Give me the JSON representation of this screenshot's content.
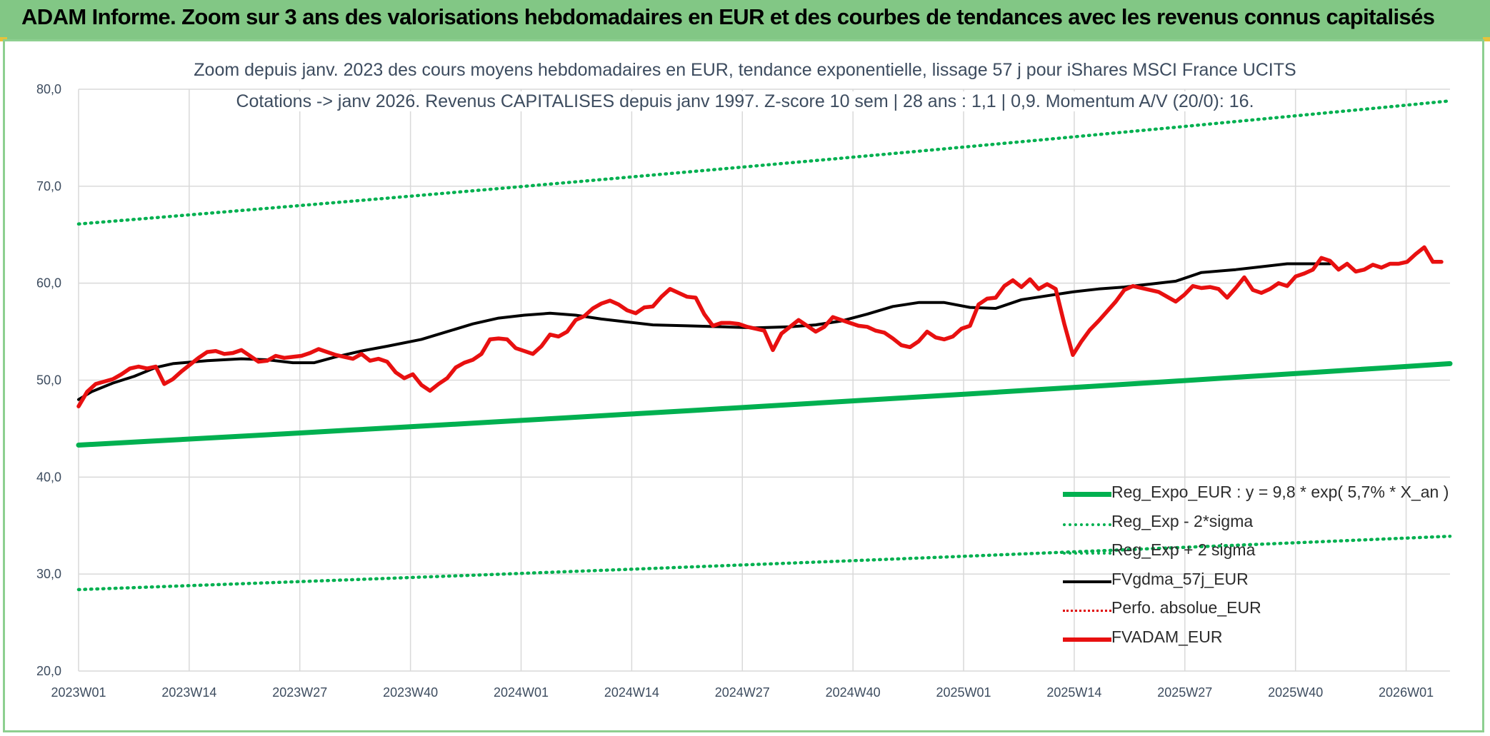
{
  "header": {
    "title": "ADAM Informe. Zoom sur 3 ans des valorisations hebdomadaires en EUR et des courbes de tendances avec les revenus connus capitalisés"
  },
  "chart_data": {
    "type": "line",
    "title": "Zoom depuis janv. 2023 des cours moyens hebdomadaires en EUR, tendance exponentielle, lissage 57 j pour iShares MSCI France UCITS",
    "subtitle": "Cotations -> janv 2026. Revenus CAPITALISES depuis janv 1997. Z-score 10 sem | 28 ans : 1,1 | 0,9. Momentum A/V (20/0): 16.",
    "xlabel": "",
    "ylabel": "",
    "ylim": [
      20,
      80
    ],
    "yticks": [
      "20,0",
      "30,0",
      "40,0",
      "50,0",
      "60,0",
      "70,0",
      "80,0"
    ],
    "yticks_values": [
      20,
      30,
      40,
      50,
      60,
      70,
      80
    ],
    "x_ticks": [
      "2023W01",
      "2023W14",
      "2023W27",
      "2023W40",
      "2024W01",
      "2024W14",
      "2024W27",
      "2024W40",
      "2025W01",
      "2025W14",
      "2025W27",
      "2025W40",
      "2026W01"
    ],
    "x_tick_index": [
      0,
      13,
      26,
      39,
      52,
      65,
      78,
      91,
      104,
      117,
      130,
      143,
      156
    ],
    "x_count": 161,
    "grid": true,
    "legend_position": "bottom-right",
    "series": [
      {
        "name": "Reg_Expo_EUR : y = 9,8 * exp( 5,7% *  X_an )",
        "style": "solid-thick",
        "color": "#00b050",
        "start": 43.3,
        "end": 51.7
      },
      {
        "name": "Reg_Exp - 2*sigma",
        "style": "dotted",
        "color": "#00b050",
        "start": 28.4,
        "end": 33.9
      },
      {
        "name": "Reg_Exp + 2 sigma",
        "style": "dotted",
        "color": "#00b050",
        "start": 66.1,
        "end": 78.8
      },
      {
        "name": "FVgdma_57j_EUR",
        "style": "solid",
        "color": "#000000",
        "points": [
          [
            0,
            48.0
          ],
          [
            3,
            48.8
          ],
          [
            8,
            49.7
          ],
          [
            13,
            50.4
          ],
          [
            18,
            51.3
          ],
          [
            22,
            51.7
          ],
          [
            30,
            52.0
          ],
          [
            38,
            52.2
          ],
          [
            44,
            52.1
          ],
          [
            50,
            51.8
          ],
          [
            55,
            51.8
          ],
          [
            60,
            52.4
          ],
          [
            66,
            53.0
          ],
          [
            72,
            53.5
          ],
          [
            80,
            54.2
          ],
          [
            86,
            55.0
          ],
          [
            92,
            55.8
          ],
          [
            98,
            56.4
          ],
          [
            104,
            56.7
          ],
          [
            110,
            56.9
          ],
          [
            116,
            56.7
          ],
          [
            122,
            56.3
          ],
          [
            128,
            56.0
          ],
          [
            134,
            55.7
          ],
          [
            142,
            55.6
          ],
          [
            150,
            55.5
          ],
          [
            158,
            55.4
          ],
          [
            166,
            55.5
          ],
          [
            172,
            55.7
          ],
          [
            178,
            56.1
          ],
          [
            184,
            56.8
          ],
          [
            190,
            57.6
          ],
          [
            196,
            58.0
          ],
          [
            202,
            58.0
          ],
          [
            208,
            57.5
          ],
          [
            214,
            57.4
          ],
          [
            220,
            58.3
          ],
          [
            226,
            58.7
          ],
          [
            232,
            59.1
          ],
          [
            238,
            59.4
          ],
          [
            244,
            59.6
          ],
          [
            250,
            59.9
          ],
          [
            256,
            60.2
          ],
          [
            262,
            61.1
          ],
          [
            270,
            61.4
          ],
          [
            276,
            61.7
          ],
          [
            282,
            62.0
          ],
          [
            288,
            62.0
          ],
          [
            292,
            62.0
          ]
        ]
      },
      {
        "name": "Perfo. absolue_EUR",
        "style": "dotted",
        "color": "#e00000",
        "points": []
      },
      {
        "name": "FVADAM_EUR",
        "style": "solid-thick",
        "color": "#e81010",
        "points": [
          [
            0,
            47.3
          ],
          [
            2,
            48.8
          ],
          [
            4,
            49.6
          ],
          [
            8,
            50.1
          ],
          [
            10,
            50.6
          ],
          [
            12,
            51.2
          ],
          [
            14,
            51.4
          ],
          [
            16,
            51.2
          ],
          [
            18,
            51.4
          ],
          [
            20,
            49.6
          ],
          [
            22,
            50.1
          ],
          [
            24,
            50.9
          ],
          [
            26,
            51.6
          ],
          [
            28,
            52.3
          ],
          [
            30,
            52.9
          ],
          [
            32,
            53.0
          ],
          [
            34,
            52.7
          ],
          [
            36,
            52.8
          ],
          [
            38,
            53.1
          ],
          [
            40,
            52.5
          ],
          [
            42,
            51.9
          ],
          [
            44,
            52.0
          ],
          [
            46,
            52.5
          ],
          [
            48,
            52.3
          ],
          [
            50,
            52.4
          ],
          [
            52,
            52.5
          ],
          [
            54,
            52.8
          ],
          [
            56,
            53.2
          ],
          [
            58,
            52.9
          ],
          [
            60,
            52.6
          ],
          [
            62,
            52.4
          ],
          [
            64,
            52.2
          ],
          [
            66,
            52.7
          ],
          [
            68,
            52.0
          ],
          [
            70,
            52.2
          ],
          [
            72,
            51.9
          ],
          [
            74,
            50.8
          ],
          [
            76,
            50.2
          ],
          [
            78,
            50.6
          ],
          [
            80,
            49.5
          ],
          [
            82,
            48.9
          ],
          [
            84,
            49.6
          ],
          [
            86,
            50.2
          ],
          [
            88,
            51.3
          ],
          [
            90,
            51.8
          ],
          [
            92,
            52.1
          ],
          [
            94,
            52.7
          ],
          [
            96,
            54.2
          ],
          [
            98,
            54.3
          ],
          [
            100,
            54.2
          ],
          [
            102,
            53.3
          ],
          [
            104,
            53.0
          ],
          [
            106,
            52.7
          ],
          [
            108,
            53.5
          ],
          [
            110,
            54.7
          ],
          [
            112,
            54.5
          ],
          [
            114,
            55.0
          ],
          [
            116,
            56.2
          ],
          [
            118,
            56.6
          ],
          [
            120,
            57.4
          ],
          [
            122,
            57.9
          ],
          [
            124,
            58.2
          ],
          [
            126,
            57.8
          ],
          [
            128,
            57.2
          ],
          [
            130,
            56.9
          ],
          [
            132,
            57.5
          ],
          [
            134,
            57.6
          ],
          [
            136,
            58.6
          ],
          [
            138,
            59.4
          ],
          [
            140,
            59.0
          ],
          [
            142,
            58.6
          ],
          [
            144,
            58.5
          ],
          [
            146,
            56.8
          ],
          [
            148,
            55.6
          ],
          [
            150,
            55.9
          ],
          [
            152,
            55.9
          ],
          [
            154,
            55.8
          ],
          [
            156,
            55.5
          ],
          [
            158,
            55.3
          ],
          [
            160,
            55.1
          ],
          [
            162,
            53.1
          ],
          [
            164,
            54.8
          ],
          [
            166,
            55.5
          ],
          [
            168,
            56.2
          ],
          [
            170,
            55.6
          ],
          [
            172,
            55.0
          ],
          [
            174,
            55.5
          ],
          [
            176,
            56.5
          ],
          [
            178,
            56.2
          ],
          [
            180,
            55.9
          ],
          [
            182,
            55.6
          ],
          [
            184,
            55.5
          ],
          [
            186,
            55.1
          ],
          [
            188,
            54.9
          ],
          [
            190,
            54.3
          ],
          [
            192,
            53.6
          ],
          [
            194,
            53.4
          ],
          [
            196,
            54.0
          ],
          [
            198,
            55.0
          ],
          [
            200,
            54.4
          ],
          [
            202,
            54.2
          ],
          [
            204,
            54.5
          ],
          [
            206,
            55.3
          ],
          [
            208,
            55.6
          ],
          [
            210,
            57.8
          ],
          [
            212,
            58.4
          ],
          [
            214,
            58.5
          ],
          [
            216,
            59.7
          ],
          [
            218,
            60.3
          ],
          [
            220,
            59.6
          ],
          [
            222,
            60.4
          ],
          [
            224,
            59.4
          ],
          [
            226,
            59.9
          ],
          [
            228,
            59.4
          ],
          [
            230,
            55.8
          ],
          [
            232,
            52.6
          ],
          [
            234,
            54.0
          ],
          [
            236,
            55.2
          ],
          [
            238,
            56.1
          ],
          [
            240,
            57.1
          ],
          [
            242,
            58.1
          ],
          [
            244,
            59.3
          ],
          [
            246,
            59.7
          ],
          [
            248,
            59.5
          ],
          [
            250,
            59.3
          ],
          [
            252,
            59.1
          ],
          [
            254,
            58.6
          ],
          [
            256,
            58.1
          ],
          [
            258,
            58.8
          ],
          [
            260,
            59.7
          ],
          [
            262,
            59.5
          ],
          [
            264,
            59.6
          ],
          [
            266,
            59.4
          ],
          [
            268,
            58.5
          ],
          [
            270,
            59.5
          ],
          [
            272,
            60.6
          ],
          [
            274,
            59.3
          ],
          [
            276,
            59.0
          ],
          [
            278,
            59.4
          ],
          [
            280,
            60.0
          ],
          [
            282,
            59.7
          ],
          [
            284,
            60.7
          ],
          [
            286,
            61.0
          ],
          [
            288,
            61.4
          ],
          [
            290,
            62.6
          ],
          [
            292,
            62.3
          ],
          [
            294,
            61.4
          ],
          [
            296,
            62.0
          ],
          [
            298,
            61.2
          ],
          [
            300,
            61.4
          ],
          [
            302,
            61.9
          ],
          [
            304,
            61.6
          ],
          [
            306,
            62.0
          ],
          [
            308,
            62.0
          ],
          [
            310,
            62.2
          ],
          [
            312,
            63.0
          ],
          [
            314,
            63.7
          ],
          [
            316,
            62.2
          ],
          [
            318,
            62.2
          ]
        ]
      }
    ]
  },
  "colors": {
    "banner": "#82c785",
    "reg_green": "#00b050",
    "series_red": "#e81010",
    "series_black": "#000000",
    "text": "#3d4c5f",
    "grid": "#d9d9d9"
  }
}
